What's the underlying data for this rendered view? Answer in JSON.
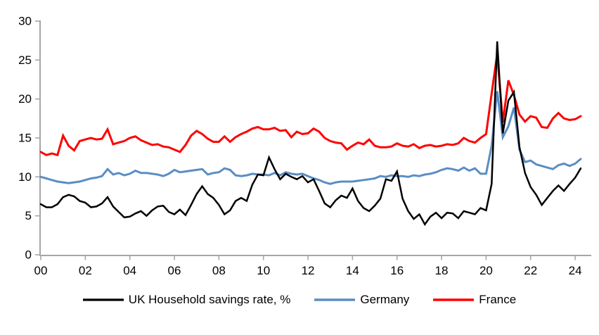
{
  "chart_data": {
    "type": "line",
    "title": "",
    "xlabel": "",
    "ylabel": "",
    "x_start_year": 2000,
    "x_step_years": 0.25,
    "x_tick_labels": [
      "00",
      "02",
      "04",
      "06",
      "08",
      "10",
      "12",
      "14",
      "16",
      "18",
      "20",
      "22",
      "24"
    ],
    "x_tick_years": [
      0,
      2,
      4,
      6,
      8,
      10,
      12,
      14,
      16,
      18,
      20,
      22,
      24
    ],
    "y_ticks": [
      0,
      5,
      10,
      15,
      20,
      25,
      30
    ],
    "ylim": [
      0,
      30
    ],
    "xlim_years": [
      0,
      24.5
    ],
    "grid": false,
    "legend_position": "bottom",
    "axis_color": "#A6A6A6",
    "label_color": "#000000",
    "background_color": "#FFFFFF",
    "series": [
      {
        "name": "UK Household savings rate, %",
        "color": "#000000",
        "line_width": 2.5,
        "values": [
          6.5,
          6.1,
          6.1,
          6.5,
          7.4,
          7.7,
          7.5,
          6.9,
          6.7,
          6.1,
          6.2,
          6.6,
          7.4,
          6.2,
          5.5,
          4.8,
          4.9,
          5.3,
          5.6,
          5.0,
          5.7,
          6.2,
          6.3,
          5.5,
          5.2,
          5.8,
          5.1,
          6.4,
          7.8,
          8.8,
          7.8,
          7.3,
          6.4,
          5.2,
          5.7,
          6.9,
          7.3,
          6.9,
          9.0,
          10.3,
          10.2,
          12.5,
          11.0,
          9.7,
          10.4,
          10.0,
          9.7,
          10.1,
          9.3,
          9.7,
          8.2,
          6.6,
          6.1,
          7.0,
          7.6,
          7.3,
          8.5,
          6.9,
          6.0,
          5.6,
          6.3,
          7.2,
          9.7,
          9.5,
          10.7,
          7.2,
          5.6,
          4.6,
          5.2,
          3.9,
          4.9,
          5.4,
          4.7,
          5.4,
          5.3,
          4.7,
          5.6,
          5.4,
          5.2,
          6.0,
          5.7,
          9.1,
          27.4,
          15.6,
          19.8,
          20.9,
          13.8,
          10.5,
          8.7,
          7.7,
          6.4,
          7.3,
          8.2,
          8.9,
          8.2,
          9.1,
          9.9,
          11.1
        ]
      },
      {
        "name": "Germany",
        "color": "#5B8DC3",
        "line_width": 3,
        "values": [
          10.0,
          9.8,
          9.6,
          9.4,
          9.3,
          9.2,
          9.3,
          9.4,
          9.6,
          9.8,
          9.9,
          10.1,
          11.0,
          10.3,
          10.5,
          10.2,
          10.4,
          10.8,
          10.5,
          10.5,
          10.4,
          10.3,
          10.1,
          10.4,
          10.9,
          10.6,
          10.7,
          10.8,
          10.9,
          11.0,
          10.3,
          10.5,
          10.6,
          11.1,
          10.9,
          10.2,
          10.1,
          10.2,
          10.4,
          10.3,
          10.3,
          10.2,
          10.5,
          10.2,
          10.6,
          10.4,
          10.3,
          10.4,
          10.1,
          9.8,
          9.6,
          9.3,
          9.1,
          9.3,
          9.4,
          9.4,
          9.4,
          9.5,
          9.6,
          9.7,
          9.8,
          10.1,
          10.0,
          10.2,
          10.1,
          10.1,
          10.0,
          10.2,
          10.1,
          10.3,
          10.4,
          10.6,
          10.9,
          11.1,
          11.0,
          10.8,
          11.2,
          10.8,
          11.1,
          10.4,
          10.4,
          14.0,
          21.0,
          15.1,
          16.5,
          18.9,
          13.5,
          11.9,
          12.1,
          11.6,
          11.4,
          11.2,
          11.0,
          11.5,
          11.7,
          11.4,
          11.7,
          12.3
        ]
      },
      {
        "name": "France",
        "color": "#FF0000",
        "line_width": 3,
        "values": [
          13.2,
          12.8,
          13.0,
          12.8,
          15.3,
          14.0,
          13.4,
          14.6,
          14.8,
          15.0,
          14.8,
          14.9,
          16.1,
          14.2,
          14.4,
          14.6,
          15.0,
          15.2,
          14.7,
          14.4,
          14.1,
          14.2,
          13.9,
          13.8,
          13.5,
          13.2,
          14.1,
          15.3,
          15.9,
          15.5,
          14.9,
          14.5,
          14.5,
          15.2,
          14.5,
          15.1,
          15.5,
          15.8,
          16.2,
          16.4,
          16.1,
          16.1,
          16.3,
          15.9,
          16.0,
          15.1,
          15.8,
          15.5,
          15.6,
          16.2,
          15.8,
          15.0,
          14.6,
          14.4,
          14.3,
          13.5,
          14.0,
          14.4,
          14.2,
          14.8,
          14.0,
          13.8,
          13.8,
          13.9,
          14.3,
          14.0,
          13.9,
          14.2,
          13.7,
          14.0,
          14.1,
          13.9,
          14.0,
          14.2,
          14.1,
          14.3,
          15.0,
          14.6,
          14.4,
          15.0,
          15.5,
          20.7,
          25.8,
          17.0,
          22.4,
          20.5,
          18.0,
          17.1,
          17.8,
          17.6,
          16.4,
          16.3,
          17.5,
          18.2,
          17.5,
          17.3,
          17.4,
          17.8
        ]
      }
    ]
  }
}
